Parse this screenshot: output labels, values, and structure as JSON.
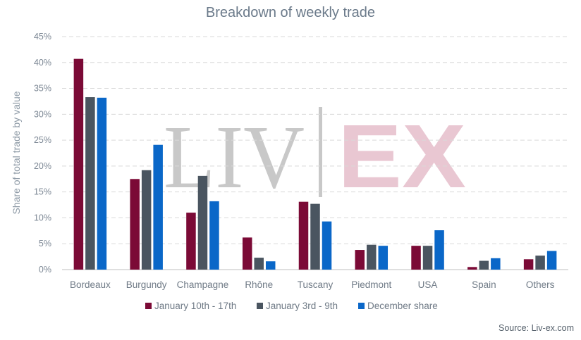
{
  "chart_data": {
    "type": "bar",
    "title": "Breakdown of weekly trade",
    "xlabel": "",
    "ylabel": "Share of total trade by value",
    "ylim": [
      0,
      45
    ],
    "yticks": [
      "0%",
      "5%",
      "10%",
      "15%",
      "20%",
      "25%",
      "30%",
      "35%",
      "40%",
      "45%"
    ],
    "grid": true,
    "legend_position": "bottom",
    "categories": [
      "Bordeaux",
      "Burgundy",
      "Champagne",
      "Rhône",
      "Tuscany",
      "Piedmont",
      "USA",
      "Spain",
      "Others"
    ],
    "series": [
      {
        "name": "January 10th - 17th",
        "color": "#7b0a36",
        "values": [
          40.7,
          17.5,
          11.0,
          6.2,
          13.1,
          3.8,
          4.6,
          0.5,
          2.0
        ]
      },
      {
        "name": "January 3rd - 9th",
        "color": "#4a5560",
        "values": [
          33.3,
          19.2,
          18.1,
          2.3,
          12.7,
          4.8,
          4.6,
          1.7,
          2.7
        ]
      },
      {
        "name": "December share",
        "color": "#0a67c8",
        "values": [
          33.2,
          24.1,
          13.2,
          1.6,
          9.3,
          4.6,
          7.6,
          2.2,
          3.6
        ]
      }
    ],
    "source": "Source: Liv-ex.com",
    "watermark": {
      "left": "LIV",
      "right": "EX",
      "left_color": "#c8c8c8",
      "right_color": "#e9c7d2"
    }
  }
}
